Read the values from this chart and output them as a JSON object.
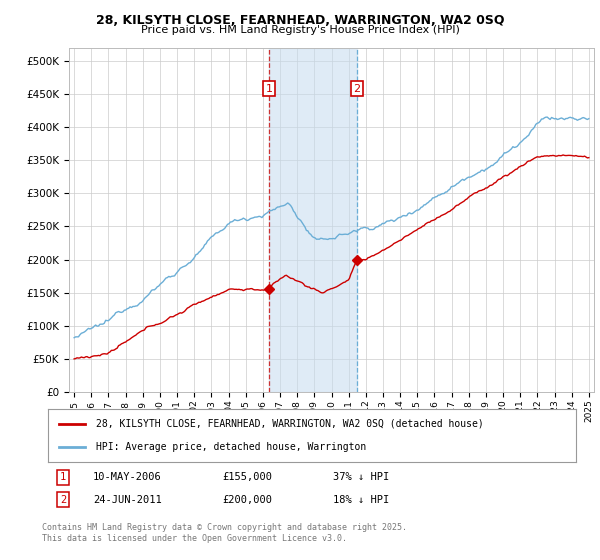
{
  "title1": "28, KILSYTH CLOSE, FEARNHEAD, WARRINGTON, WA2 0SQ",
  "title2": "Price paid vs. HM Land Registry's House Price Index (HPI)",
  "ylim": [
    0,
    520000
  ],
  "yticks": [
    0,
    50000,
    100000,
    150000,
    200000,
    250000,
    300000,
    350000,
    400000,
    450000,
    500000
  ],
  "xlim_start": 1994.7,
  "xlim_end": 2025.3,
  "sale1_date": 2006.36,
  "sale1_price": 155000,
  "sale1_label": "1",
  "sale2_date": 2011.48,
  "sale2_price": 200000,
  "sale2_label": "2",
  "hpi_color": "#6baed6",
  "price_color": "#cc0000",
  "sale_marker_color": "#cc0000",
  "shade_color": "#c6dbef",
  "vline1_color": "#cc3333",
  "vline2_color": "#6baed6",
  "legend_label1": "28, KILSYTH CLOSE, FEARNHEAD, WARRINGTON, WA2 0SQ (detached house)",
  "legend_label2": "HPI: Average price, detached house, Warrington",
  "annotation1_date": "10-MAY-2006",
  "annotation1_price": "£155,000",
  "annotation1_pct": "37% ↓ HPI",
  "annotation2_date": "24-JUN-2011",
  "annotation2_price": "£200,000",
  "annotation2_pct": "18% ↓ HPI",
  "footer": "Contains HM Land Registry data © Crown copyright and database right 2025.\nThis data is licensed under the Open Government Licence v3.0.",
  "background_color": "#ffffff",
  "grid_color": "#cccccc"
}
